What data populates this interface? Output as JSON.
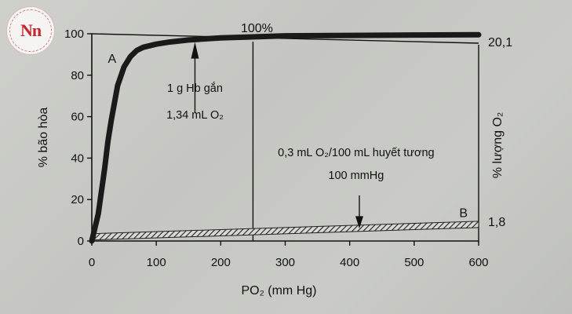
{
  "chart_data": {
    "type": "line",
    "xlabel": "PO₂ (mm Hg)",
    "ylabel": "% bão hòa",
    "y2label": "% lượng O₂",
    "xlim": [
      0,
      600
    ],
    "ylim": [
      0,
      100
    ],
    "xticks": [
      "0",
      "100",
      "200",
      "300",
      "400",
      "500",
      "600"
    ],
    "yticks": [
      "0",
      "20",
      "40",
      "60",
      "80",
      "100"
    ],
    "series": [
      {
        "name": "A",
        "x": [
          0,
          10,
          20,
          25,
          30,
          40,
          50,
          60,
          70,
          80,
          100,
          120,
          150,
          200,
          250,
          300,
          400,
          500,
          600
        ],
        "y": [
          0,
          13,
          35,
          48,
          58,
          75,
          84,
          89,
          92,
          93.5,
          95,
          96,
          97,
          98,
          98.5,
          99,
          99.2,
          99.4,
          99.5
        ]
      },
      {
        "name": "B",
        "x": [
          0,
          600
        ],
        "y": [
          2,
          8
        ]
      }
    ],
    "annotations": {
      "top_label": "100%",
      "right_top_value": "20,1",
      "right_bottom_value": "1,8",
      "hb_note_line1": "1 g Hb gắn",
      "hb_note_line2": "1,34 mL O₂",
      "plasma_note_line1": "0,3 mL O₂/100 mL huyết tương",
      "plasma_note_line2": "100 mmHg"
    },
    "grid": false,
    "legend": "none"
  }
}
